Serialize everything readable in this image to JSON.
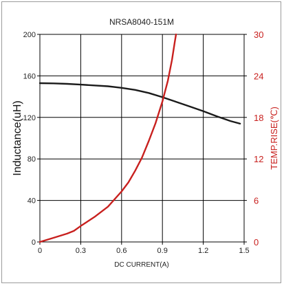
{
  "chart_data": {
    "type": "line",
    "title": "NRSA8040-151M",
    "xlabel": "DC CURRENT(A)",
    "ylabel_left": "Inductance(uH)",
    "ylabel_right": "TEMP.RISE(℃)",
    "xlim": [
      0,
      1.5
    ],
    "ylim_left": [
      0,
      200
    ],
    "ylim_right": [
      0,
      30
    ],
    "x_ticks": [
      "0",
      "0.3",
      "0.6",
      "0.9",
      "1.2",
      "1.5"
    ],
    "y_left_ticks": [
      "0",
      "40",
      "80",
      "120",
      "160",
      "200"
    ],
    "y_right_ticks": [
      "0",
      "6",
      "12",
      "18",
      "24",
      "30"
    ],
    "grid": true,
    "series": [
      {
        "axis": "left",
        "color": "#1a1a1a",
        "x": [
          0,
          0.1,
          0.2,
          0.3,
          0.4,
          0.5,
          0.6,
          0.7,
          0.8,
          0.9,
          1.0,
          1.1,
          1.2,
          1.3,
          1.4,
          1.47
        ],
        "y": [
          153,
          152.8,
          152.3,
          151.6,
          150.8,
          150,
          148.5,
          146.5,
          143.5,
          139.5,
          135,
          130.5,
          126,
          121,
          116.5,
          114
        ]
      },
      {
        "axis": "right",
        "color": "#c8201e",
        "x": [
          0,
          0.1,
          0.2,
          0.25,
          0.3,
          0.4,
          0.5,
          0.6,
          0.65,
          0.7,
          0.75,
          0.8,
          0.85,
          0.9,
          0.94,
          0.97,
          0.99,
          1.0
        ],
        "y": [
          0,
          0.6,
          1.2,
          1.6,
          2.3,
          3.6,
          5.1,
          7.3,
          8.6,
          10.3,
          12.2,
          14.6,
          17.2,
          20.3,
          23.3,
          26.3,
          28.8,
          30
        ]
      }
    ]
  }
}
